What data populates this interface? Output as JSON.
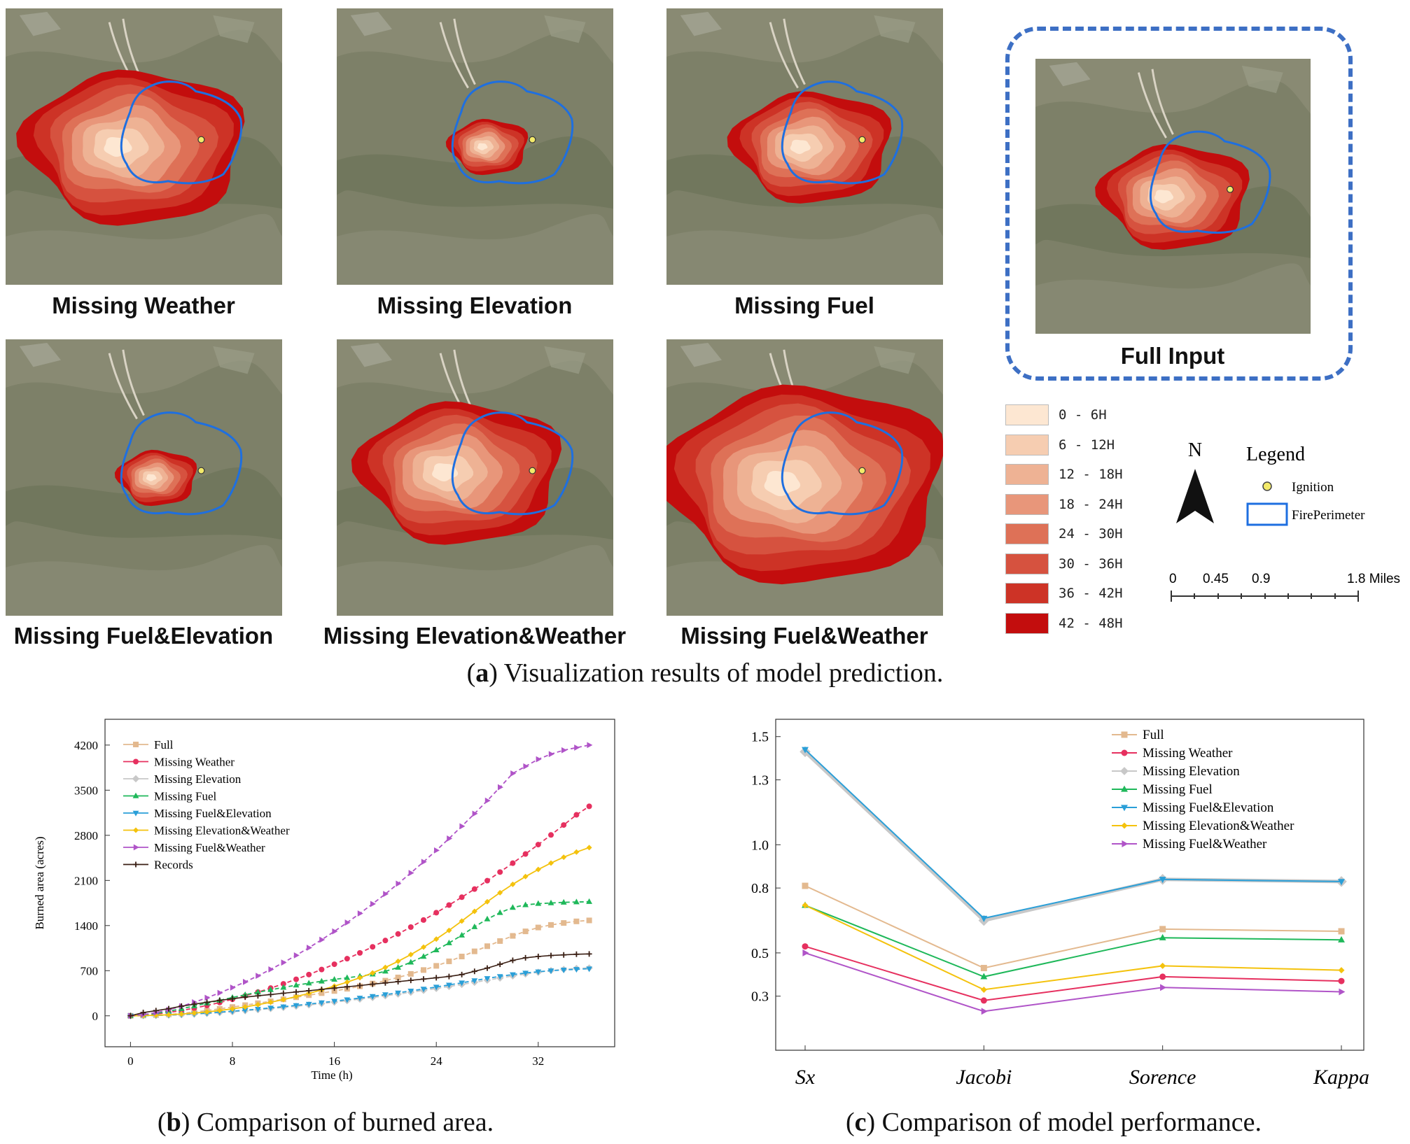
{
  "maps": [
    {
      "title": "Missing Weather",
      "burn_scale": 1.25,
      "ox": -0.08,
      "oy": 0.0
    },
    {
      "title": "Missing Elevation",
      "burn_scale": 0.45,
      "ox": 0.0,
      "oy": 0.0
    },
    {
      "title": "Missing Fuel",
      "burn_scale": 0.9,
      "ox": -0.02,
      "oy": 0.0
    },
    {
      "title": "Missing Fuel&Elevation",
      "burn_scale": 0.45,
      "ox": 0.0,
      "oy": 0.0
    },
    {
      "title": "Missing Elevation&Weather",
      "burn_scale": 1.15,
      "ox": -0.1,
      "oy": -0.02
    },
    {
      "title": "Missing Fuel&Weather",
      "burn_scale": 1.6,
      "ox": -0.05,
      "oy": 0.02
    },
    {
      "title": "Full Input",
      "burn_scale": 0.85,
      "ox": -0.04,
      "oy": 0.0
    }
  ],
  "legend": {
    "time_classes": [
      {
        "label": "0 - 6H",
        "color": "#fde7d2"
      },
      {
        "label": "6 - 12H",
        "color": "#f6cdb1"
      },
      {
        "label": "12 - 18H",
        "color": "#eeb294"
      },
      {
        "label": "18 - 24H",
        "color": "#e8967a"
      },
      {
        "label": "24 - 30H",
        "color": "#de7157"
      },
      {
        "label": "30 - 36H",
        "color": "#d6523f"
      },
      {
        "label": "36 - 42H",
        "color": "#cd3326"
      },
      {
        "label": "42 - 48H",
        "color": "#c30d0d"
      }
    ],
    "north": "N",
    "title": "Legend",
    "ignition": "Ignition",
    "perimeter": "FirePerimeter",
    "scale_ticks": [
      "0",
      "0.45",
      "0.9",
      "1.8 Miles"
    ]
  },
  "captions": {
    "a_letter": "a",
    "a_text": " Visualization results of model prediction.",
    "b_letter": "b",
    "b_text": " Comparison of burned area.",
    "c_letter": "c",
    "c_text": " Comparison of model performance."
  },
  "chart_data": [
    {
      "type": "line",
      "xlabel": "Time (h)",
      "ylabel": "Burned area (acres)",
      "xlim": [
        -2,
        38
      ],
      "ylim": [
        -480,
        4600
      ],
      "xticks": [
        0,
        8,
        16,
        24,
        32
      ],
      "yticks": [
        0,
        700,
        1400,
        2100,
        2800,
        3500,
        4200
      ],
      "legend_position": "top-left",
      "series": [
        {
          "name": "Full",
          "color": "#e3b98f",
          "marker": "square",
          "values": [
            0,
            4,
            10,
            22,
            38,
            58,
            82,
            108,
            136,
            165,
            195,
            225,
            256,
            288,
            320,
            352,
            385,
            420,
            458,
            500,
            545,
            595,
            650,
            710,
            775,
            845,
            920,
            1000,
            1080,
            1160,
            1240,
            1310,
            1370,
            1410,
            1440,
            1465,
            1480
          ]
        },
        {
          "name": "Missing Weather",
          "color": "#e6305f",
          "marker": "circle",
          "values": [
            0,
            10,
            28,
            52,
            82,
            118,
            160,
            206,
            256,
            310,
            368,
            430,
            496,
            566,
            640,
            718,
            800,
            886,
            976,
            1070,
            1168,
            1270,
            1376,
            1486,
            1600,
            1718,
            1840,
            1966,
            2096,
            2230,
            2368,
            2510,
            2656,
            2806,
            2960,
            3118,
            3250
          ]
        },
        {
          "name": "Missing Elevation",
          "color": "#c8c8c8",
          "marker": "diamond",
          "values": [
            0,
            2,
            5,
            10,
            17,
            26,
            37,
            50,
            64,
            79,
            95,
            112,
            130,
            149,
            169,
            190,
            212,
            235,
            259,
            284,
            310,
            337,
            365,
            394,
            424,
            455,
            487,
            520,
            553,
            586,
            618,
            648,
            676,
            702,
            720,
            735,
            742
          ]
        },
        {
          "name": "Missing Fuel",
          "color": "#1fb85a",
          "marker": "triangle-up",
          "values": [
            0,
            12,
            36,
            70,
            110,
            152,
            196,
            240,
            284,
            326,
            366,
            404,
            440,
            474,
            506,
            536,
            564,
            590,
            614,
            645,
            690,
            750,
            830,
            920,
            1020,
            1130,
            1250,
            1380,
            1500,
            1600,
            1680,
            1720,
            1740,
            1750,
            1760,
            1765,
            1770
          ]
        },
        {
          "name": "Missing Fuel&Elevation",
          "color": "#2a9fd8",
          "marker": "triangle-down",
          "values": [
            0,
            2,
            6,
            12,
            20,
            30,
            42,
            56,
            71,
            87,
            104,
            122,
            141,
            161,
            182,
            204,
            227,
            251,
            276,
            302,
            329,
            357,
            386,
            416,
            447,
            479,
            512,
            546,
            580,
            612,
            640,
            664,
            684,
            700,
            712,
            722,
            730
          ]
        },
        {
          "name": "Missing Elevation&Weather",
          "color": "#f4c20d",
          "marker": "diamond-small",
          "values": [
            0,
            3,
            8,
            16,
            27,
            42,
            60,
            82,
            108,
            138,
            172,
            210,
            252,
            298,
            348,
            402,
            460,
            522,
            590,
            665,
            750,
            845,
            950,
            1065,
            1190,
            1325,
            1470,
            1620,
            1770,
            1910,
            2040,
            2160,
            2270,
            2370,
            2460,
            2540,
            2610
          ]
        },
        {
          "name": "Missing Fuel&Weather",
          "color": "#b054c8",
          "marker": "triangle-right",
          "values": [
            0,
            18,
            50,
            94,
            148,
            210,
            280,
            356,
            438,
            526,
            620,
            720,
            826,
            938,
            1056,
            1180,
            1310,
            1446,
            1588,
            1736,
            1890,
            2050,
            2216,
            2388,
            2566,
            2750,
            2940,
            3136,
            3338,
            3546,
            3760,
            3870,
            3980,
            4060,
            4120,
            4160,
            4200
          ]
        },
        {
          "name": "Records",
          "color": "#3a1f14",
          "marker": "plus",
          "values": [
            0,
            50,
            80,
            110,
            150,
            180,
            210,
            240,
            265,
            290,
            310,
            330,
            350,
            370,
            390,
            410,
            430,
            450,
            470,
            490,
            510,
            530,
            550,
            570,
            590,
            610,
            640,
            690,
            740,
            800,
            860,
            900,
            920,
            935,
            945,
            955,
            960
          ]
        }
      ],
      "x": [
        0,
        1,
        2,
        3,
        4,
        5,
        6,
        7,
        8,
        9,
        10,
        11,
        12,
        13,
        14,
        15,
        16,
        17,
        18,
        19,
        20,
        21,
        22,
        23,
        24,
        25,
        26,
        27,
        28,
        29,
        30,
        31,
        32,
        33,
        34,
        35,
        36
      ]
    },
    {
      "type": "line",
      "xlabel": "",
      "ylabel": "",
      "categories": [
        "Sx",
        "Jacobi",
        "Sorence",
        "Kappa"
      ],
      "ylim": [
        0.05,
        1.58
      ],
      "yticks": [
        0.3,
        0.5,
        0.8,
        1.0,
        1.3,
        1.5
      ],
      "legend_position": "top-right",
      "series": [
        {
          "name": "Full",
          "color": "#e3b98f",
          "marker": "square",
          "values": [
            0.81,
            0.43,
            0.61,
            0.6
          ]
        },
        {
          "name": "Missing Weather",
          "color": "#e6305f",
          "marker": "circle",
          "values": [
            0.53,
            0.28,
            0.39,
            0.37
          ]
        },
        {
          "name": "Missing Elevation",
          "color": "#c8c8c8",
          "marker": "diamond",
          "values": [
            1.43,
            0.65,
            0.84,
            0.83
          ]
        },
        {
          "name": "Missing Fuel",
          "color": "#1fb85a",
          "marker": "triangle-up",
          "values": [
            0.72,
            0.39,
            0.57,
            0.56
          ]
        },
        {
          "name": "Missing Fuel&Elevation",
          "color": "#2a9fd8",
          "marker": "triangle-down",
          "values": [
            1.44,
            0.66,
            0.84,
            0.83
          ]
        },
        {
          "name": "Missing Elevation&Weather",
          "color": "#f4c20d",
          "marker": "diamond-small",
          "values": [
            0.72,
            0.33,
            0.44,
            0.42
          ]
        },
        {
          "name": "Missing Fuel&Weather",
          "color": "#b054c8",
          "marker": "triangle-right",
          "values": [
            0.5,
            0.23,
            0.34,
            0.32
          ]
        }
      ]
    }
  ]
}
